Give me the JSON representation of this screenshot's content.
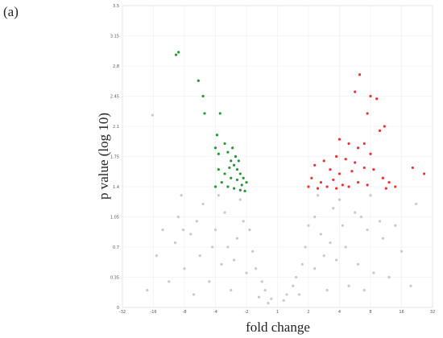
{
  "panel_label": "(a)",
  "chart_data": {
    "type": "scatter",
    "xlabel": "fold change",
    "ylabel": "p value (log 10)",
    "xlim": [
      -5,
      5
    ],
    "ylim": [
      0,
      3.5
    ],
    "xticks": [
      {
        "value": -5,
        "label": "-32"
      },
      {
        "value": -4,
        "label": "-16"
      },
      {
        "value": -3,
        "label": "-8"
      },
      {
        "value": -2,
        "label": "-4"
      },
      {
        "value": -1,
        "label": "-2"
      },
      {
        "value": 0,
        "label": "1"
      },
      {
        "value": 1,
        "label": "2"
      },
      {
        "value": 2,
        "label": "4"
      },
      {
        "value": 3,
        "label": "8"
      },
      {
        "value": 4,
        "label": "16"
      },
      {
        "value": 5,
        "label": "32"
      }
    ],
    "yticks": [
      0,
      0.35,
      0.7,
      1.05,
      1.4,
      1.75,
      2.1,
      2.45,
      2.8,
      3.15,
      3.5
    ],
    "grid": true,
    "series": [
      {
        "color": "#c8c8c8",
        "x": [
          -0.2,
          0.3,
          -0.5,
          0.6,
          -1.0,
          1.2,
          -1.8,
          1.9,
          -2.5,
          2.6,
          -3.0,
          3.1,
          -3.5,
          3.6,
          -2.2,
          2.3,
          -1.5,
          1.6,
          -0.8,
          0.9,
          -1.3,
          1.4,
          -2.0,
          2.1,
          -2.8,
          2.9,
          -3.3,
          3.4,
          -1.1,
          1.2,
          -1.7,
          1.8,
          -2.4,
          2.5,
          -1.2,
          1.3,
          -3.9,
          4.0,
          -4.2,
          4.3,
          -0.4,
          0.5,
          -0.7,
          0.8,
          -1.4,
          1.5,
          -2.6,
          2.7,
          -3.2,
          3.3,
          -1.6,
          1.7,
          -2.1,
          2.2,
          -0.9,
          1.0,
          -3.7,
          3.8,
          -3.04,
          4.47,
          -4.03,
          -3.1,
          3.0,
          -1.9,
          2.0,
          -0.3,
          0.2,
          -0.6,
          0.7,
          -2.7,
          2.8
        ],
        "values": [
          0.1,
          0.15,
          0.3,
          0.35,
          0.4,
          0.45,
          0.5,
          0.55,
          0.6,
          0.5,
          0.45,
          0.4,
          0.3,
          0.35,
          0.3,
          0.25,
          0.2,
          0.2,
          0.65,
          0.7,
          0.8,
          0.85,
          0.9,
          0.95,
          0.85,
          0.9,
          0.75,
          0.8,
          1.0,
          1.05,
          1.1,
          1.15,
          1.2,
          1.1,
          1.25,
          1.3,
          0.6,
          0.65,
          0.2,
          0.25,
          0.2,
          0.25,
          0.45,
          0.5,
          0.55,
          0.6,
          1.0,
          1.05,
          1.05,
          1.0,
          0.7,
          0.75,
          0.7,
          0.7,
          0.9,
          0.95,
          0.9,
          0.95,
          0.9,
          1.2,
          2.23,
          1.3,
          1.3,
          1.3,
          1.25,
          0.05,
          0.08,
          0.12,
          0.15,
          0.15,
          0.2
        ]
      },
      {
        "color": "#1e9a2e",
        "x": [
          -3.27,
          -3.19,
          -2.55,
          -2.4,
          -2.35,
          -1.85,
          -1.95,
          -2.0,
          -1.9,
          -1.7,
          -1.6,
          -1.5,
          -1.4,
          -1.3,
          -1.2,
          -1.1,
          -1.0,
          -1.15,
          -1.3,
          -1.5,
          -1.7,
          -1.8,
          -1.6,
          -1.4,
          -1.2,
          -1.05,
          -1.9,
          -2.0,
          -1.35,
          -1.25,
          -1.45,
          -1.55
        ],
        "values": [
          2.93,
          2.96,
          2.63,
          2.45,
          2.25,
          2.25,
          2.0,
          1.85,
          1.78,
          1.9,
          1.8,
          1.7,
          1.65,
          1.6,
          1.55,
          1.5,
          1.45,
          1.42,
          1.48,
          1.5,
          1.55,
          1.45,
          1.4,
          1.38,
          1.36,
          1.35,
          1.6,
          1.4,
          1.75,
          1.7,
          1.85,
          1.62
        ]
      },
      {
        "color": "#ee3030",
        "x": [
          2.65,
          2.5,
          3.0,
          3.2,
          2.9,
          3.45,
          3.3,
          2.0,
          2.3,
          2.6,
          2.8,
          1.9,
          2.2,
          2.5,
          3.0,
          1.5,
          1.2,
          1.7,
          2.0,
          2.4,
          2.8,
          3.1,
          3.4,
          1.1,
          1.4,
          1.8,
          2.1,
          2.6,
          1.0,
          1.3,
          1.6,
          2.3,
          2.9,
          3.6,
          3.8,
          4.36,
          4.73,
          1.9,
          3.5
        ],
        "values": [
          2.7,
          2.5,
          2.45,
          2.42,
          2.25,
          2.1,
          2.05,
          1.95,
          1.9,
          1.85,
          1.9,
          1.75,
          1.72,
          1.68,
          1.78,
          1.7,
          1.65,
          1.6,
          1.55,
          1.58,
          1.62,
          1.6,
          1.5,
          1.5,
          1.45,
          1.48,
          1.42,
          1.45,
          1.4,
          1.38,
          1.4,
          1.4,
          1.42,
          1.45,
          1.4,
          1.62,
          1.55,
          1.38,
          1.38
        ]
      }
    ]
  }
}
